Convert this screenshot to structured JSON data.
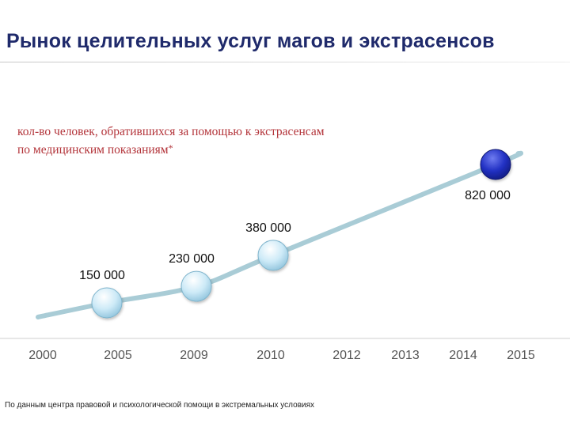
{
  "header": {
    "title": "Рынок целительных  услуг магов и экстрасенсов"
  },
  "chart_subtitle": {
    "line1": "кол-во  человек, обратившихся за помощью к экстрасенсам",
    "line2": "по медицинским показаниям",
    "note_mark": "*"
  },
  "chart_data": {
    "type": "line",
    "title": "Рынок целительных  услуг магов и экстрасенсов",
    "subtitle": "кол-во  человек, обратившихся за помощью к экстрасенсам по медицинским показаниям*",
    "categories": [
      "2000",
      "2005",
      "2009",
      "2010",
      "2012",
      "2013",
      "2014",
      "2015"
    ],
    "series": [
      {
        "values": [
          null,
          150000,
          230000,
          380000,
          null,
          null,
          820000,
          null
        ],
        "labels": [
          "",
          "150 000",
          "230 000",
          "380 000",
          "",
          "",
          "820 000",
          ""
        ]
      }
    ],
    "grid": false,
    "legend": "none"
  },
  "colors": {
    "trend_line": "#a9ccd6",
    "marker_light": "#b9dff0",
    "marker_dark": "#1d2bb3",
    "axis": "#cfcfcf",
    "tick_label": "#555555"
  },
  "footer": {
    "source": "По данным центра правовой и психологической помощи в экстремальных условиях"
  }
}
